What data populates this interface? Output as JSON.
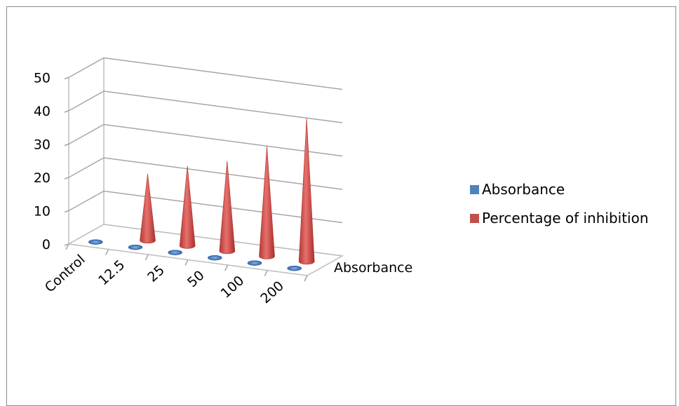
{
  "chart_data": {
    "type": "bar",
    "style": "3d-cone",
    "categories": [
      "Control",
      "12.5",
      "25",
      "50",
      "100",
      "200"
    ],
    "series": [
      {
        "name": "Absorbance",
        "color": "#4f81bd",
        "values": [
          0.5,
          0.5,
          0.5,
          0.5,
          0.5,
          0.5
        ]
      },
      {
        "name": "Percentage of inhibition",
        "color": "#c0504d",
        "values": [
          0,
          20,
          24,
          27,
          33,
          43
        ]
      }
    ],
    "depth_axis_label": "Absorbance",
    "yticks": [
      "0",
      "10",
      "20",
      "30",
      "40",
      "50"
    ],
    "ylim": [
      0,
      50
    ],
    "grid": true,
    "legend_position": "right"
  }
}
